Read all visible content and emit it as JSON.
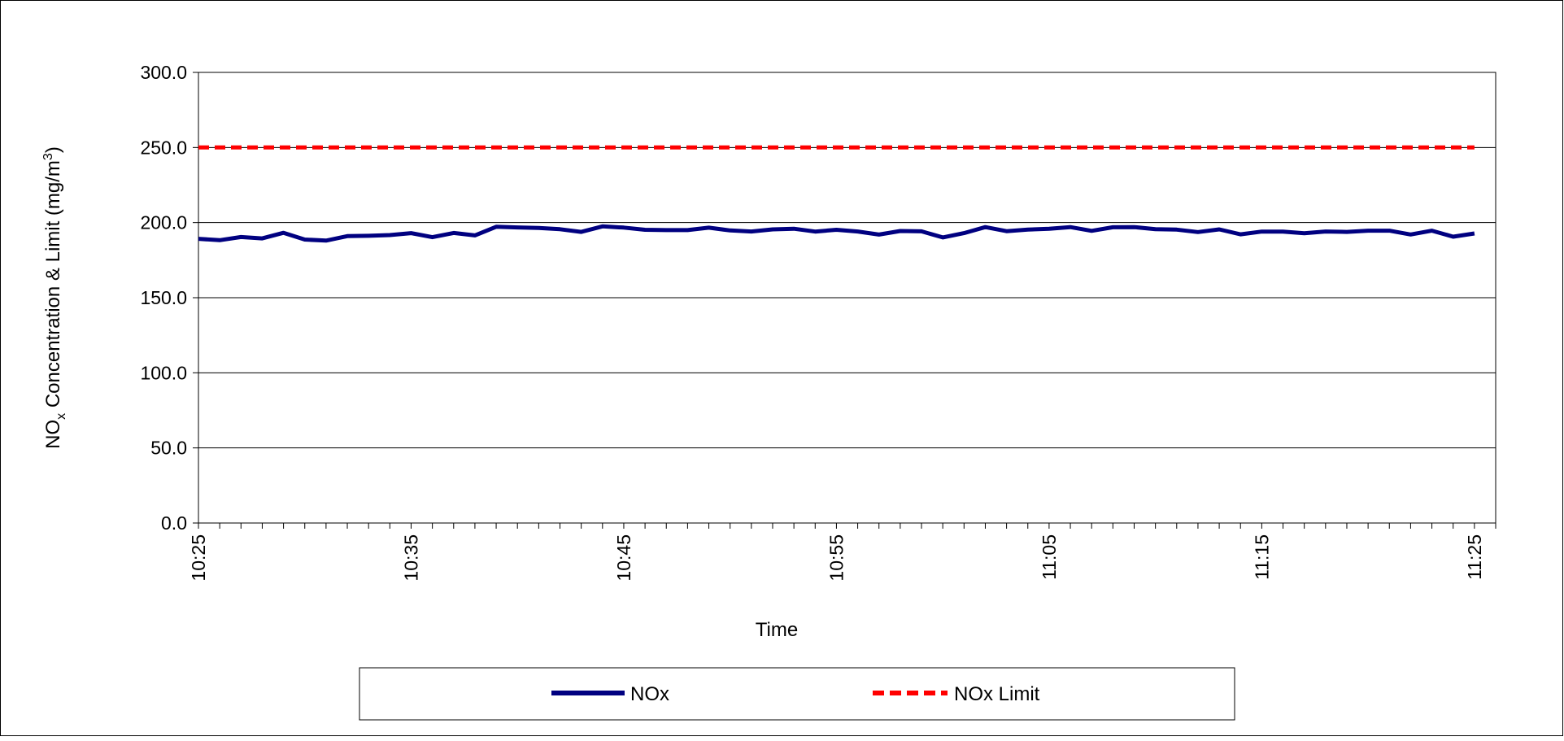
{
  "chart_data": {
    "type": "line",
    "title": "",
    "xlabel": "Time",
    "ylabel": {
      "prefix": "NO",
      "subscript": "x",
      "middle": " Concentration & Limit (mg/m",
      "superscript": "3",
      "suffix": ")"
    },
    "ylim": [
      0,
      300
    ],
    "yticks": [
      "0.0",
      "50.0",
      "100.0",
      "150.0",
      "200.0",
      "250.0",
      "300.0"
    ],
    "xlim": [
      "10:25",
      "11:26"
    ],
    "xticks": [
      "10:25",
      "10:35",
      "10:45",
      "10:55",
      "11:05",
      "11:15",
      "11:25"
    ],
    "grid": "horizontal",
    "legend_position": "bottom",
    "x": [
      "10:25",
      "10:26",
      "10:27",
      "10:28",
      "10:29",
      "10:30",
      "10:31",
      "10:32",
      "10:33",
      "10:34",
      "10:35",
      "10:36",
      "10:37",
      "10:38",
      "10:39",
      "10:40",
      "10:41",
      "10:42",
      "10:43",
      "10:44",
      "10:45",
      "10:46",
      "10:47",
      "10:48",
      "10:49",
      "10:50",
      "10:51",
      "10:52",
      "10:53",
      "10:54",
      "10:55",
      "10:56",
      "10:57",
      "10:58",
      "10:59",
      "11:00",
      "11:01",
      "11:02",
      "11:03",
      "11:04",
      "11:05",
      "11:06",
      "11:07",
      "11:08",
      "11:09",
      "11:10",
      "11:11",
      "11:12",
      "11:13",
      "11:14",
      "11:15",
      "11:16",
      "11:17",
      "11:18",
      "11:19",
      "11:20",
      "11:21",
      "11:22",
      "11:23",
      "11:24",
      "11:25"
    ],
    "series": [
      {
        "name": "NOx",
        "color": "#000080",
        "style": "solid",
        "values": [
          189.2,
          188.3,
          190.4,
          189.5,
          193.2,
          188.7,
          188.0,
          191.0,
          191.2,
          191.7,
          193.0,
          190.3,
          193.1,
          191.5,
          197.2,
          196.8,
          196.4,
          195.6,
          193.8,
          197.5,
          196.7,
          195.2,
          195.0,
          195.0,
          196.6,
          194.8,
          194.1,
          195.5,
          195.9,
          194.0,
          195.2,
          194.1,
          192.0,
          194.4,
          194.2,
          190.1,
          193.0,
          197.0,
          194.3,
          195.3,
          195.9,
          197.0,
          194.5,
          196.9,
          197.0,
          195.6,
          195.3,
          193.7,
          195.5,
          192.2,
          194.0,
          194.0,
          192.9,
          194.1,
          193.8,
          194.6,
          194.6,
          192.1,
          194.6,
          190.6,
          192.8
        ]
      },
      {
        "name": "NOx Limit",
        "color": "#ff0000",
        "style": "dashed",
        "values": [
          250,
          250,
          250,
          250,
          250,
          250,
          250,
          250,
          250,
          250,
          250,
          250,
          250,
          250,
          250,
          250,
          250,
          250,
          250,
          250,
          250,
          250,
          250,
          250,
          250,
          250,
          250,
          250,
          250,
          250,
          250,
          250,
          250,
          250,
          250,
          250,
          250,
          250,
          250,
          250,
          250,
          250,
          250,
          250,
          250,
          250,
          250,
          250,
          250,
          250,
          250,
          250,
          250,
          250,
          250,
          250,
          250,
          250,
          250,
          250,
          250
        ]
      }
    ]
  }
}
